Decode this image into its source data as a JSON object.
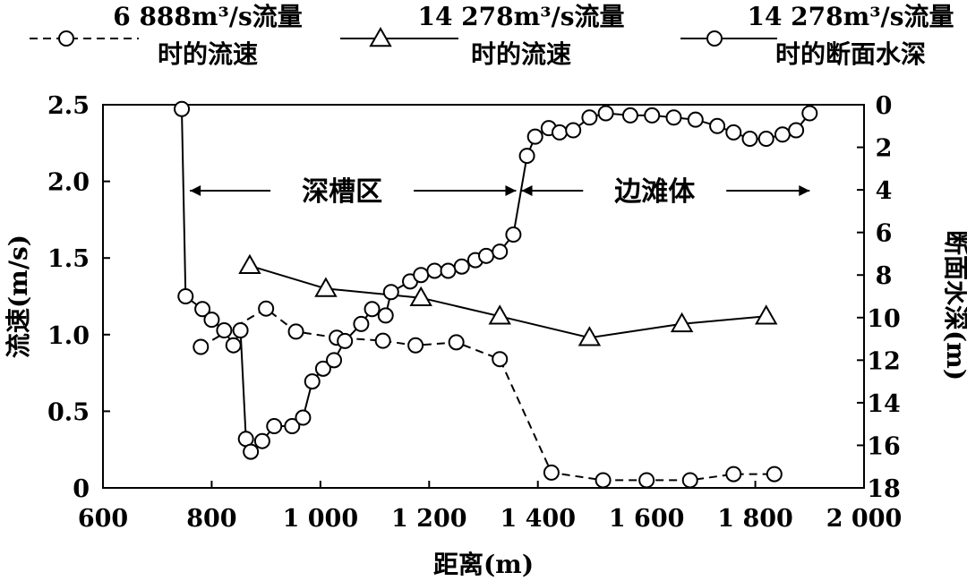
{
  "chart_data": {
    "type": "line",
    "xlabel": "距离(m)",
    "ylabel": "流速(m/s)",
    "y2label": "断面水深(m)",
    "xlim": [
      600,
      2000
    ],
    "ylim": [
      0,
      2.5
    ],
    "y2lim": [
      0,
      18
    ],
    "y2_inverted": true,
    "x_ticks": [
      "600",
      "800",
      "1 000",
      "1 200",
      "1 400",
      "1 600",
      "1 800",
      "2 000"
    ],
    "y_ticks": [
      "0",
      "0.5",
      "1.0",
      "1.5",
      "2.0",
      "2.5"
    ],
    "y2_ticks": [
      "0",
      "2",
      "4",
      "6",
      "8",
      "10",
      "12",
      "14",
      "16",
      "18"
    ],
    "grid": false,
    "legend_position": "top",
    "regions": [
      {
        "label": "深槽区",
        "from": 760,
        "to": 1360
      },
      {
        "label": "边滩体",
        "from": 1370,
        "to": 1900
      }
    ],
    "series": [
      {
        "name_line1": "6 888m³/s流量",
        "name_line2": "时的流速",
        "axis": "left",
        "marker": "circle",
        "line_style": "dashed",
        "x": [
          780,
          900,
          955,
          1030,
          1115,
          1175,
          1250,
          1330,
          1425,
          1520,
          1600,
          1680,
          1760,
          1835
        ],
        "y": [
          0.92,
          1.17,
          1.02,
          0.98,
          0.96,
          0.93,
          0.95,
          0.84,
          0.1,
          0.05,
          0.05,
          0.05,
          0.09,
          0.09
        ]
      },
      {
        "name_line1": "14 278m³/s流量",
        "name_line2": "时的流速",
        "axis": "left",
        "marker": "triangle",
        "line_style": "solid",
        "x": [
          870,
          1010,
          1185,
          1330,
          1495,
          1665,
          1820
        ],
        "y": [
          1.45,
          1.3,
          1.24,
          1.12,
          0.98,
          1.07,
          1.12
        ]
      },
      {
        "name_line1": "14 278m³/s流量",
        "name_line2": "时的断面水深",
        "axis": "right",
        "marker": "circle",
        "line_style": "solid",
        "x": [
          745,
          752,
          783,
          800,
          823,
          840,
          853,
          863,
          872,
          893,
          915,
          948,
          968,
          985,
          1005,
          1025,
          1045,
          1075,
          1095,
          1120,
          1130,
          1165,
          1185,
          1210,
          1235,
          1260,
          1285,
          1305,
          1330,
          1355,
          1380,
          1395,
          1420,
          1440,
          1465,
          1495,
          1525,
          1570,
          1610,
          1650,
          1690,
          1730,
          1760,
          1790,
          1820,
          1850,
          1875,
          1900
        ],
        "y": [
          0.2,
          9.0,
          9.6,
          10.1,
          10.6,
          11.3,
          10.6,
          15.7,
          16.3,
          15.8,
          15.1,
          15.1,
          14.7,
          13.0,
          12.4,
          12.0,
          11.1,
          10.3,
          9.6,
          9.9,
          8.8,
          8.3,
          8.0,
          7.8,
          7.8,
          7.6,
          7.3,
          7.1,
          6.9,
          6.1,
          2.4,
          1.5,
          1.1,
          1.3,
          1.2,
          0.6,
          0.4,
          0.5,
          0.5,
          0.6,
          0.7,
          1.0,
          1.3,
          1.6,
          1.6,
          1.4,
          1.2,
          0.4
        ]
      }
    ]
  }
}
